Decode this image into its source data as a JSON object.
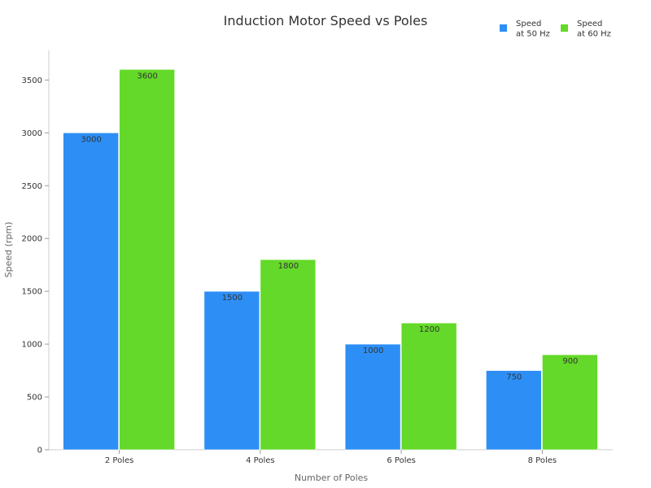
{
  "chart_data": {
    "type": "bar",
    "title": "Induction Motor Speed vs Poles",
    "xlabel": "Number of Poles",
    "ylabel": "Speed (rpm)",
    "categories": [
      "2 Poles",
      "4 Poles",
      "6 Poles",
      "8 Poles"
    ],
    "series": [
      {
        "name_lines": [
          "Speed",
          "at 50 Hz"
        ],
        "color": "#2d8ff5",
        "values": [
          3000,
          1500,
          1000,
          750
        ]
      },
      {
        "name_lines": [
          "Speed",
          "at 60 Hz"
        ],
        "color": "#64d929",
        "values": [
          3600,
          1800,
          1200,
          900
        ]
      }
    ],
    "ylim": [
      0,
      3780
    ],
    "yticks": [
      0,
      500,
      1000,
      1500,
      2000,
      2500,
      3000,
      3500
    ],
    "grid": false,
    "legend_position": "top-right",
    "data_labels": true
  }
}
